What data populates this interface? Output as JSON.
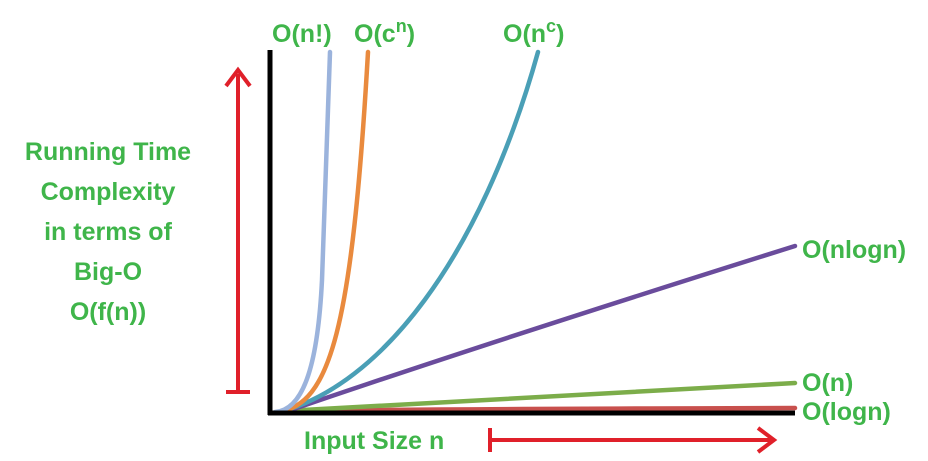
{
  "y_axis_label": [
    "Running Time",
    "Complexity",
    "in terms of",
    "Big-O",
    "O(f(n))"
  ],
  "x_axis_label": "Input Size n",
  "curves": [
    {
      "text": "O(n!)"
    },
    {
      "text": "O(c",
      "sup": "n",
      "tail": ")"
    },
    {
      "text": "O(n",
      "sup": "c",
      "tail": ")"
    },
    {
      "text": "O(nlogn)"
    },
    {
      "text": "O(n)"
    },
    {
      "text": "O(logn)"
    }
  ]
}
